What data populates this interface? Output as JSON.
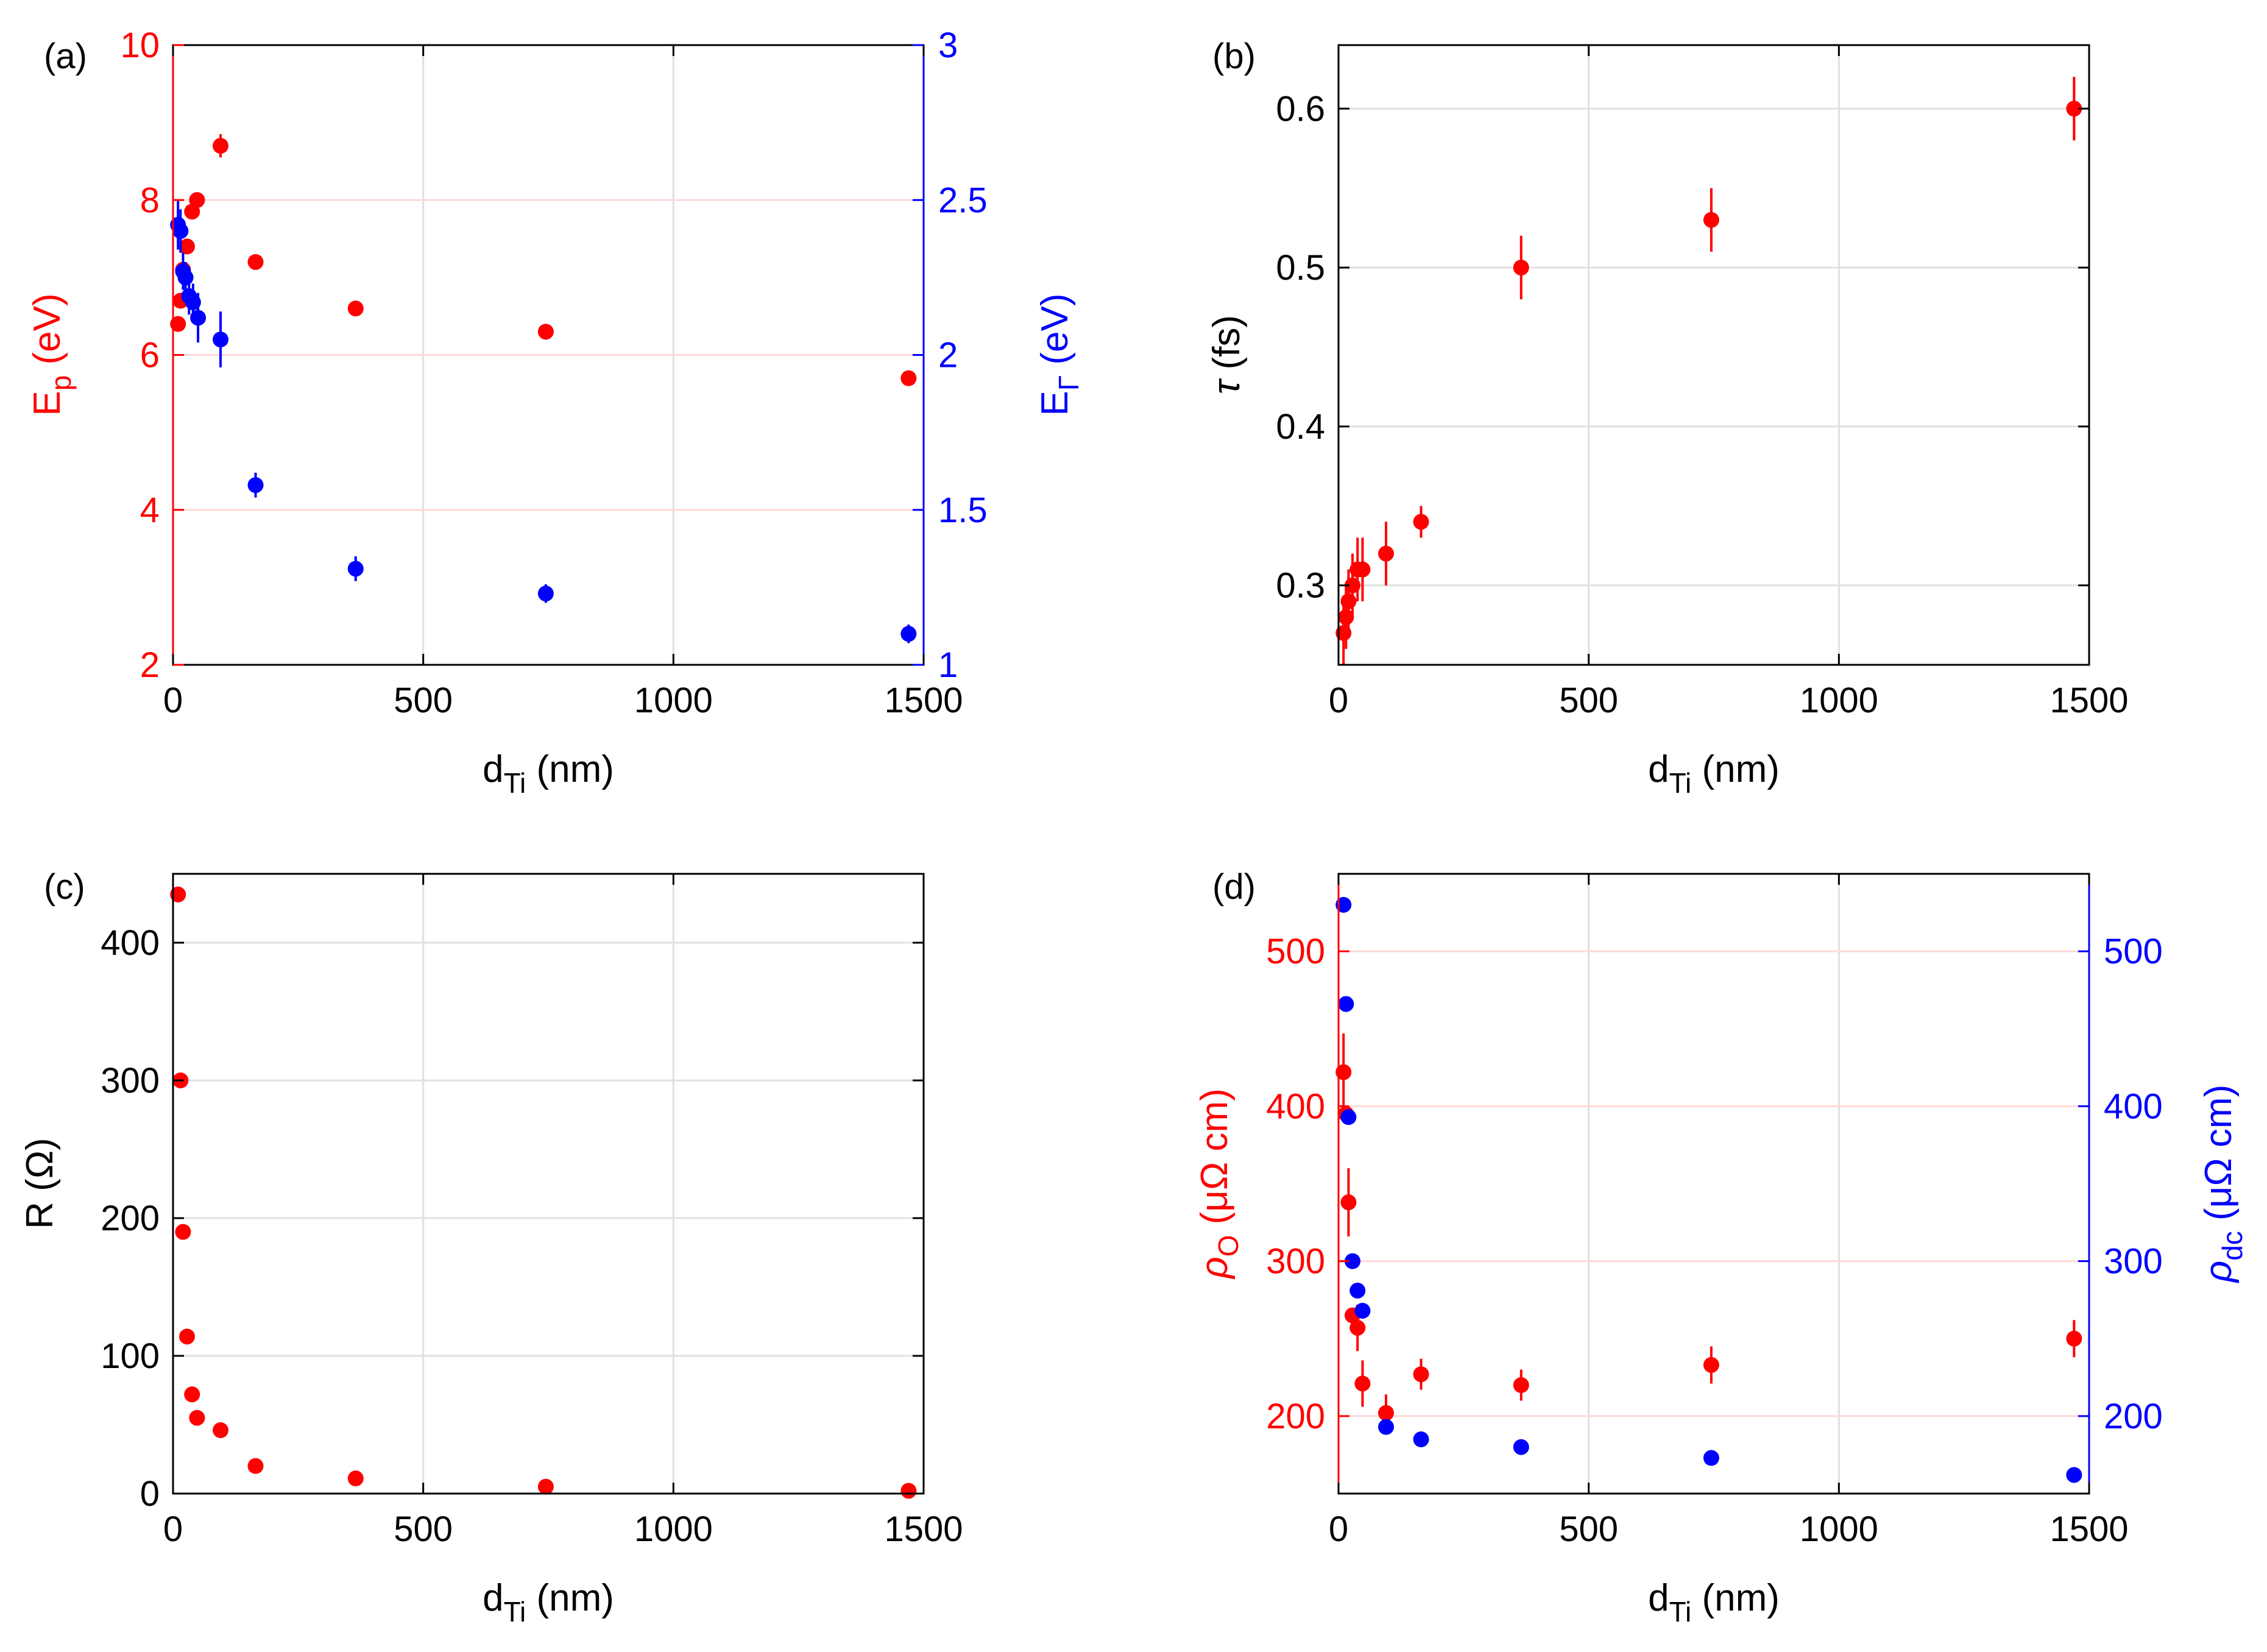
{
  "chart_data": [
    {
      "id": "a",
      "type": "scatter",
      "panel_label": "(a)",
      "xlabel_main": "d",
      "xlabel_sub": "Ti",
      "xlabel_tail": " (nm)",
      "xlim": [
        0,
        1500
      ],
      "xticks": [
        0,
        500,
        1000,
        1500
      ],
      "yleft": {
        "label_main": "E",
        "label_sub": "p",
        "label_tail": " (eV)",
        "lim": [
          2,
          10
        ],
        "ticks": [
          2,
          4,
          6,
          8,
          10
        ],
        "color": "#ff0000"
      },
      "yright": {
        "label_main": "E",
        "label_sub": "Γ",
        "label_tail": " (eV)",
        "lim": [
          1,
          3
        ],
        "ticks": [
          1,
          1.5,
          2,
          2.5,
          3
        ],
        "tick_labels": [
          "1",
          "1.5",
          "2",
          "2.5",
          "3"
        ],
        "color": "#0000ff"
      },
      "series": [
        {
          "name": "E_p",
          "axis": "left",
          "color": "#ff0000",
          "x": [
            10,
            15,
            20,
            28,
            38,
            48,
            95,
            165,
            365,
            745,
            1470
          ],
          "y": [
            6.4,
            6.7,
            7.1,
            7.4,
            7.85,
            8.0,
            8.7,
            7.2,
            6.6,
            6.3,
            5.7
          ],
          "err": [
            0,
            0,
            0,
            0,
            0.1,
            0.1,
            0.15,
            0,
            0,
            0,
            0
          ]
        },
        {
          "name": "E_Gamma",
          "axis": "right",
          "color": "#0000ff",
          "x": [
            10,
            15,
            20,
            25,
            32,
            40,
            50,
            95,
            165,
            365,
            745,
            1470
          ],
          "y": [
            2.42,
            2.4,
            2.27,
            2.25,
            2.19,
            2.17,
            2.12,
            2.05,
            1.58,
            1.31,
            1.23,
            1.1
          ],
          "err": [
            0.08,
            0.07,
            0.06,
            0.05,
            0.06,
            0.06,
            0.08,
            0.09,
            0.04,
            0.04,
            0.03,
            0.03
          ]
        }
      ]
    },
    {
      "id": "b",
      "type": "scatter",
      "panel_label": "(b)",
      "xlabel_main": "d",
      "xlabel_sub": "Ti",
      "xlabel_tail": " (nm)",
      "xlim": [
        0,
        1500
      ],
      "xticks": [
        0,
        500,
        1000,
        1500
      ],
      "yleft": {
        "label_main": "τ",
        "label_sub": "",
        "label_tail": " (fs)",
        "lim": [
          0.25,
          0.64
        ],
        "ticks": [
          0.3,
          0.4,
          0.5,
          0.6
        ],
        "tick_labels": [
          "0.3",
          "0.4",
          "0.5",
          "0.6"
        ],
        "color": "#000000"
      },
      "series": [
        {
          "name": "tau",
          "axis": "left",
          "color": "#ff0000",
          "x": [
            10,
            15,
            20,
            28,
            38,
            48,
            95,
            165,
            365,
            745,
            1470
          ],
          "y": [
            0.27,
            0.28,
            0.29,
            0.3,
            0.31,
            0.31,
            0.32,
            0.34,
            0.5,
            0.53,
            0.6
          ],
          "err": [
            0.02,
            0.02,
            0.02,
            0.02,
            0.02,
            0.02,
            0.02,
            0.01,
            0.02,
            0.02,
            0.02
          ]
        }
      ]
    },
    {
      "id": "c",
      "type": "scatter",
      "panel_label": "(c)",
      "xlabel_main": "d",
      "xlabel_sub": "Ti",
      "xlabel_tail": " (nm)",
      "xlim": [
        0,
        1500
      ],
      "xticks": [
        0,
        500,
        1000,
        1500
      ],
      "yleft": {
        "label_main": "R",
        "label_sub": "",
        "label_tail": " (Ω)",
        "lim": [
          0,
          450
        ],
        "ticks": [
          0,
          100,
          200,
          300,
          400
        ],
        "color": "#000000"
      },
      "series": [
        {
          "name": "R",
          "axis": "left",
          "color": "#ff0000",
          "x": [
            10,
            15,
            20,
            28,
            38,
            48,
            95,
            165,
            365,
            745,
            1470
          ],
          "y": [
            435,
            300,
            190,
            114,
            72,
            55,
            46,
            20,
            11,
            5,
            2
          ],
          "err": [
            0,
            0,
            0,
            0,
            0,
            0,
            0,
            0,
            0,
            0,
            0
          ]
        }
      ]
    },
    {
      "id": "d",
      "type": "scatter",
      "panel_label": "(d)",
      "xlabel_main": "d",
      "xlabel_sub": "Ti",
      "xlabel_tail": " (nm)",
      "xlim": [
        0,
        1500
      ],
      "xticks": [
        0,
        500,
        1000,
        1500
      ],
      "yleft": {
        "label_main": "ρ",
        "label_sub": "O",
        "label_tail": " (μΩ cm)",
        "lim": [
          150,
          550
        ],
        "ticks": [
          200,
          300,
          400,
          500
        ],
        "color": "#ff0000"
      },
      "yright": {
        "label_main": "ρ",
        "label_sub": "dc",
        "label_tail": " (μΩ cm)",
        "lim": [
          150,
          550
        ],
        "ticks": [
          200,
          300,
          400,
          500
        ],
        "color": "#0000ff"
      },
      "series": [
        {
          "name": "rho_O",
          "axis": "left",
          "color": "#ff0000",
          "x": [
            10,
            15,
            20,
            28,
            38,
            48,
            95,
            165,
            365,
            745,
            1470
          ],
          "y": [
            422,
            395,
            338,
            265,
            257,
            221,
            202,
            227,
            220,
            233,
            250
          ],
          "err": [
            25,
            0,
            22,
            0,
            15,
            15,
            12,
            10,
            10,
            12,
            12
          ]
        },
        {
          "name": "rho_dc",
          "axis": "right",
          "color": "#0000ff",
          "x": [
            10,
            15,
            20,
            28,
            38,
            48,
            95,
            165,
            365,
            745,
            1470
          ],
          "y": [
            530,
            466,
            393,
            300,
            281,
            268,
            193,
            185,
            180,
            173,
            162
          ],
          "err": [
            0,
            0,
            0,
            0,
            0,
            0,
            0,
            0,
            0,
            0,
            0
          ]
        }
      ]
    }
  ]
}
